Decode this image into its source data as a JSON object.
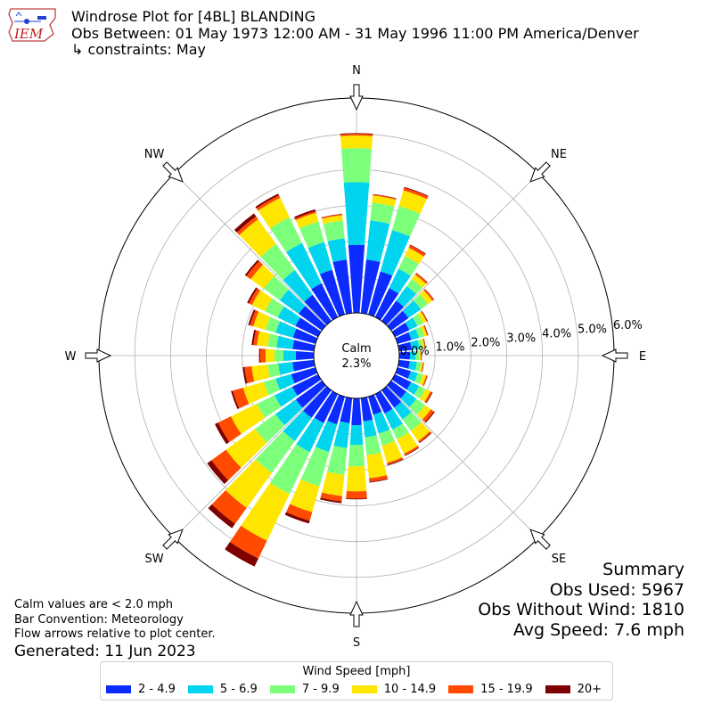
{
  "logo": {
    "text": "IEM"
  },
  "header": {
    "title": "Windrose Plot for [4BL] BLANDING",
    "subtitle": "Obs Between: 01 May 1973 12:00 AM - 31 May 1996 11:00 PM America/Denver",
    "constraints": "↳ constraints: May"
  },
  "summary": {
    "heading": "Summary",
    "obs_used": "Obs Used: 5967",
    "obs_without_wind": "Obs Without Wind: 1810",
    "avg_speed": "Avg Speed: 7.6 mph"
  },
  "notes": {
    "calm_note": "Calm values are < 2.0 mph",
    "bar_convention": "Bar Convention: Meteorology",
    "flow_arrows": "Flow arrows relative to plot center.",
    "generated": "Generated: 11 Jun 2023"
  },
  "legend": {
    "title": "Wind Speed [mph]",
    "items": [
      "2 - 4.9",
      "5 - 6.9",
      "7 - 9.9",
      "10 - 14.9",
      "15 - 19.9",
      "20+"
    ]
  },
  "colors": [
    "#0c2cff",
    "#00d4ee",
    "#7cff7a",
    "#ffe600",
    "#ff4a00",
    "#7f0000"
  ],
  "chart_data": {
    "type": "windrose",
    "calm": {
      "label": "Calm",
      "value": "2.3%"
    },
    "radial_ticks": [
      "0.0%",
      "1.0%",
      "2.0%",
      "3.0%",
      "4.0%",
      "5.0%",
      "6.0%"
    ],
    "rmax": 6.0,
    "direction_labels": [
      "N",
      "NE",
      "E",
      "SE",
      "S",
      "SW",
      "W",
      "NW"
    ],
    "sectors_deg": [
      0,
      10,
      20,
      30,
      40,
      50,
      60,
      70,
      80,
      90,
      100,
      110,
      120,
      130,
      140,
      150,
      160,
      170,
      180,
      190,
      200,
      210,
      220,
      230,
      240,
      250,
      260,
      270,
      280,
      290,
      300,
      310,
      320,
      330,
      340,
      350
    ],
    "series": [
      {
        "name": "2 - 4.9",
        "values": [
          1.9,
          1.5,
          1.25,
          0.9,
          0.7,
          0.6,
          0.45,
          0.4,
          0.35,
          0.3,
          0.3,
          0.38,
          0.5,
          0.52,
          0.6,
          0.6,
          0.52,
          0.65,
          0.75,
          0.7,
          0.8,
          0.9,
          0.95,
          0.9,
          0.8,
          0.7,
          0.6,
          0.5,
          0.6,
          0.65,
          0.7,
          0.8,
          0.9,
          1.05,
          1.3,
          1.5
        ]
      },
      {
        "name": "5 - 6.9",
        "values": [
          1.75,
          1.1,
          1.2,
          0.6,
          0.5,
          0.42,
          0.25,
          0.22,
          0.22,
          0.15,
          0.2,
          0.2,
          0.25,
          0.35,
          0.4,
          0.5,
          0.55,
          0.45,
          0.55,
          0.7,
          0.8,
          0.9,
          0.8,
          0.7,
          0.55,
          0.45,
          0.4,
          0.35,
          0.45,
          0.5,
          0.55,
          0.65,
          0.85,
          1.25,
          0.8,
          0.6
        ]
      },
      {
        "name": "7 - 9.9",
        "values": [
          0.95,
          0.5,
          0.7,
          0.4,
          0.25,
          0.25,
          0.18,
          0.15,
          0.1,
          0.1,
          0.12,
          0.15,
          0.2,
          0.3,
          0.4,
          0.3,
          0.35,
          0.5,
          0.6,
          0.75,
          1.0,
          1.3,
          1.1,
          0.7,
          0.55,
          0.35,
          0.3,
          0.25,
          0.25,
          0.3,
          0.4,
          0.55,
          0.9,
          0.8,
          0.6,
          0.5
        ]
      },
      {
        "name": "10 - 14.9",
        "values": [
          0.35,
          0.2,
          0.45,
          0.25,
          0.15,
          0.15,
          0.1,
          0.08,
          0.05,
          0.05,
          0.05,
          0.1,
          0.15,
          0.2,
          0.35,
          0.45,
          0.5,
          0.65,
          0.7,
          0.6,
          0.75,
          1.45,
          1.2,
          1.0,
          0.8,
          0.6,
          0.45,
          0.25,
          0.3,
          0.35,
          0.4,
          0.45,
          0.85,
          0.6,
          0.25,
          0.15
        ]
      },
      {
        "name": "15 - 19.9",
        "values": [
          0.05,
          0.03,
          0.08,
          0.08,
          0.05,
          0.05,
          0.03,
          0.03,
          0.02,
          0.02,
          0.02,
          0.03,
          0.05,
          0.1,
          0.05,
          0.05,
          0.05,
          0.1,
          0.2,
          0.15,
          0.25,
          0.55,
          0.55,
          0.5,
          0.4,
          0.3,
          0.2,
          0.15,
          0.1,
          0.1,
          0.1,
          0.15,
          0.1,
          0.08,
          0.05,
          0.03
        ]
      },
      {
        "name": "20+",
        "values": [
          0.02,
          0.01,
          0.02,
          0.02,
          0.01,
          0.01,
          0.01,
          0.01,
          0.01,
          0.01,
          0.01,
          0.01,
          0.02,
          0.03,
          0.02,
          0.02,
          0.02,
          0.02,
          0.02,
          0.05,
          0.08,
          0.25,
          0.15,
          0.15,
          0.1,
          0.05,
          0.05,
          0.03,
          0.05,
          0.05,
          0.05,
          0.05,
          0.1,
          0.05,
          0.05,
          0.01
        ]
      }
    ]
  }
}
